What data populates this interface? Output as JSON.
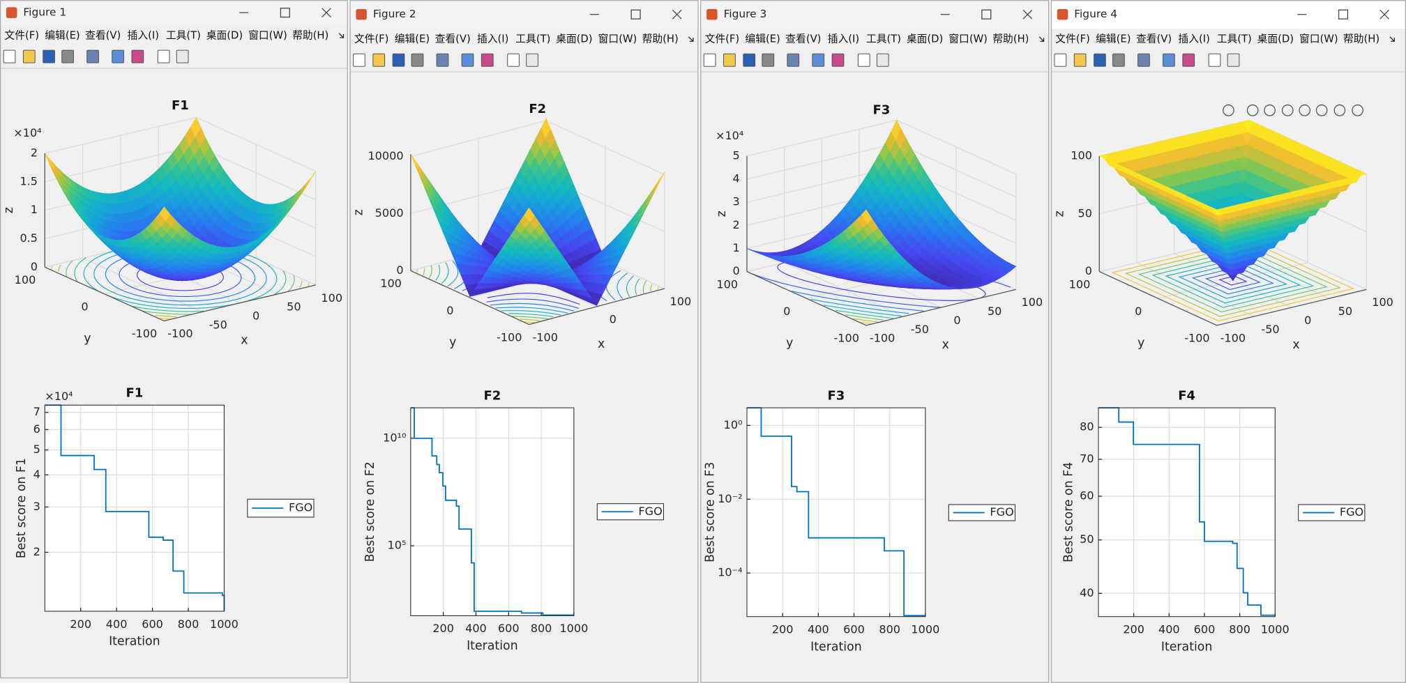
{
  "windows": [
    {
      "title": "Figure 1",
      "menu": [
        "文件(F)",
        "编辑(E)",
        "查看(V)",
        "插入(I)",
        "工具(T)",
        "桌面(D)",
        "窗口(W)",
        "帮助(H)"
      ],
      "surface": {
        "title": "F1",
        "xlabel": "x",
        "ylabel": "y",
        "zlabel": "z",
        "exponent": "×10⁴",
        "xlim": [
          -100,
          100
        ],
        "ylim": [
          -100,
          100
        ],
        "zlim": [
          0,
          20000
        ],
        "xticks": [
          -100,
          -50,
          0,
          50,
          100
        ],
        "yticks": [
          -100,
          0,
          100
        ],
        "zticks": [
          {
            "value": 0,
            "label": "0"
          },
          {
            "value": 5000,
            "label": "0.5"
          },
          {
            "value": 10000,
            "label": "1"
          },
          {
            "value": 15000,
            "label": "1.5"
          },
          {
            "value": 20000,
            "label": "2"
          }
        ]
      },
      "convergence": {
        "type": "line",
        "title": "F1",
        "xlabel": "Iteration",
        "ylabel": "Best score on F1",
        "exponent": "×10⁴",
        "yscale": "log",
        "grid": true,
        "xlim": [
          0,
          1000
        ],
        "xticks": [
          200,
          400,
          600,
          800,
          1000
        ],
        "ylim": [
          11800,
          74700
        ],
        "yticks": [
          {
            "value": 20000,
            "label": "2"
          },
          {
            "value": 30000,
            "label": "3"
          },
          {
            "value": 40000,
            "label": "4"
          },
          {
            "value": 50000,
            "label": "5"
          },
          {
            "value": 60000,
            "label": "6"
          },
          {
            "value": 70000,
            "label": "7"
          }
        ],
        "series": [
          {
            "name": "FGO",
            "color": "#0072bd",
            "x": [
              1,
              90,
              90,
              275,
              275,
              340,
              340,
              580,
              580,
              660,
              660,
              715,
              715,
              775,
              775,
              990,
              990,
              1000,
              1000
            ],
            "values": [
              74700,
              74700,
              47600,
              47600,
              42000,
              42000,
              28800,
              28800,
              22900,
              22900,
              22300,
              22300,
              16900,
              16900,
              13900,
              13900,
              13600,
              13600,
              11800
            ]
          }
        ]
      }
    },
    {
      "title": "Figure 2",
      "menu": [
        "文件(F)",
        "编辑(E)",
        "查看(V)",
        "插入(I)",
        "工具(T)",
        "桌面(D)",
        "窗口(W)",
        "帮助(H)"
      ],
      "surface": {
        "title": "F2",
        "xlabel": "x",
        "ylabel": "y",
        "zlabel": "z",
        "xlim": [
          -100,
          100
        ],
        "ylim": [
          -100,
          100
        ],
        "zlim": [
          0,
          10200
        ],
        "xticks": [
          -100,
          0,
          100
        ],
        "yticks": [
          -100,
          0,
          100
        ],
        "zticks": [
          0,
          5000,
          10000
        ]
      },
      "convergence": {
        "type": "line",
        "title": "F2",
        "xlabel": "Iteration",
        "ylabel": "Best score on F2",
        "yscale": "log",
        "grid": true,
        "xlim": [
          0,
          1000
        ],
        "xticks": [
          200,
          400,
          600,
          800,
          1000
        ],
        "ylim": [
          56,
          260000000000
        ],
        "yticks": [
          {
            "value": 100000,
            "label": "10⁵"
          },
          {
            "value": 10000000000,
            "label": "10¹⁰"
          }
        ],
        "series": [
          {
            "name": "FGO",
            "color": "#0072bd",
            "x": [
              1,
              22,
              22,
              131,
              131,
              160,
              160,
              175,
              175,
              197,
              197,
              214,
              214,
              280,
              280,
              296,
              296,
              372,
              372,
              389,
              389,
              679,
              679,
              810,
              810,
              1000
            ],
            "values": [
              260000000000,
              260000000000,
              10000000000,
              10000000000,
              1500000000,
              1500000000,
              600000000,
              600000000,
              250000000,
              250000000,
              60000000,
              60000000,
              13000000,
              13000000,
              7000000,
              7000000,
              600000,
              600000,
              16000,
              16000,
              90,
              90,
              75,
              75,
              60,
              60
            ]
          }
        ]
      }
    },
    {
      "title": "Figure 3",
      "menu": [
        "文件(F)",
        "编辑(E)",
        "查看(V)",
        "插入(I)",
        "工具(T)",
        "桌面(D)",
        "窗口(W)",
        "帮助(H)"
      ],
      "surface": {
        "title": "F3",
        "xlabel": "x",
        "ylabel": "y",
        "zlabel": "z",
        "exponent": "×10⁴",
        "xlim": [
          -100,
          100
        ],
        "ylim": [
          -100,
          100
        ],
        "zlim": [
          0,
          50000
        ],
        "xticks": [
          -100,
          -50,
          0,
          50,
          100
        ],
        "yticks": [
          -100,
          0,
          100
        ],
        "zticks": [
          {
            "value": 0,
            "label": "0"
          },
          {
            "value": 10000,
            "label": "1"
          },
          {
            "value": 20000,
            "label": "2"
          },
          {
            "value": 30000,
            "label": "3"
          },
          {
            "value": 40000,
            "label": "4"
          },
          {
            "value": 50000,
            "label": "5"
          }
        ]
      },
      "convergence": {
        "type": "line",
        "title": "F3",
        "xlabel": "Iteration",
        "ylabel": "Best score on F3",
        "yscale": "log",
        "grid": true,
        "xlim": [
          0,
          1000
        ],
        "xticks": [
          200,
          400,
          600,
          800,
          1000
        ],
        "ylim": [
          6.6e-06,
          3
        ],
        "yticks": [
          {
            "value": 0.0001,
            "label": "10⁻⁴"
          },
          {
            "value": 0.01,
            "label": "10⁻²"
          },
          {
            "value": 1,
            "label": "10⁰"
          }
        ],
        "series": [
          {
            "name": "FGO",
            "color": "#0072bd",
            "x": [
              1,
              80,
              80,
              250,
              250,
              280,
              280,
              345,
              345,
              770,
              770,
              880,
              880,
              1000
            ],
            "values": [
              3,
              3,
              0.51,
              0.51,
              0.022,
              0.022,
              0.016,
              0.016,
              0.0009,
              0.0009,
              0.0004,
              0.0004,
              7e-06,
              7e-06
            ]
          }
        ]
      }
    },
    {
      "title": "Figure 4",
      "menu": [
        "文件(F)",
        "编辑(E)",
        "查看(V)",
        "插入(I)",
        "工具(T)",
        "桌面(D)",
        "窗口(W)",
        "帮助(H)"
      ],
      "surface": {
        "xlabel": "x",
        "ylabel": "y",
        "zlabel": "z",
        "xlim": [
          -100,
          100
        ],
        "ylim": [
          -100,
          100
        ],
        "zlim": [
          0,
          100
        ],
        "xticks": [
          -100,
          -50,
          0,
          50,
          100
        ],
        "yticks": [
          -100,
          0,
          100
        ],
        "zticks": [
          0,
          50,
          100
        ]
      },
      "convergence": {
        "type": "line",
        "title": "F4",
        "xlabel": "Iteration",
        "ylabel": "Best score on F4",
        "yscale": "log",
        "grid": true,
        "xlim": [
          0,
          1000
        ],
        "xticks": [
          200,
          400,
          600,
          800,
          1000
        ],
        "ylim": [
          36.3,
          86.8
        ],
        "yticks": [
          40,
          50,
          60,
          70,
          80
        ],
        "series": [
          {
            "name": "FGO",
            "color": "#0072bd",
            "x": [
              1,
              115,
              115,
              198,
              198,
              572,
              572,
              600,
              600,
              760,
              760,
              785,
              785,
              820,
              820,
              845,
              845,
              920,
              920,
              1000
            ],
            "values": [
              86.8,
              86.8,
              81.8,
              81.8,
              74.5,
              74.5,
              53.9,
              53.9,
              49.7,
              49.7,
              49.3,
              49.3,
              44.4,
              44.4,
              40.1,
              40.1,
              38.1,
              38.1,
              36.5,
              36.5
            ]
          }
        ]
      }
    }
  ]
}
